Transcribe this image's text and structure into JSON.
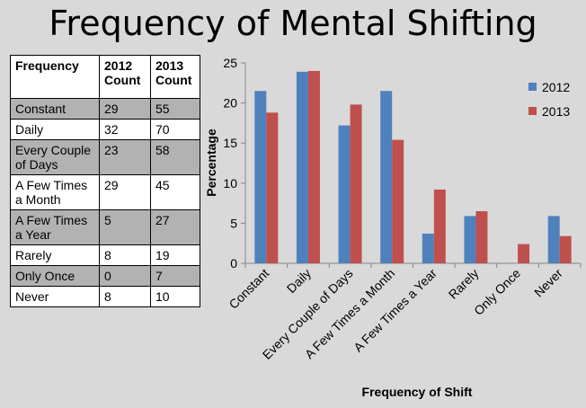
{
  "title": "Frequency of Mental Shifting",
  "table": {
    "headers": [
      "Frequency",
      "2012 Count",
      "2013 Count"
    ],
    "rows": [
      [
        "Constant",
        "29",
        "55"
      ],
      [
        "Daily",
        "32",
        "70"
      ],
      [
        "Every Couple of Days",
        "23",
        "58"
      ],
      [
        "A Few Times a Month",
        "29",
        "45"
      ],
      [
        "A Few Times a Year",
        "5",
        "27"
      ],
      [
        "Rarely",
        "8",
        "19"
      ],
      [
        "Only Once",
        "0",
        "7"
      ],
      [
        "Never",
        "8",
        "10"
      ]
    ]
  },
  "chart_data": {
    "type": "bar",
    "categories": [
      "Constant",
      "Daily",
      "Every Couple of Days",
      "A Few Times a Month",
      "A Few Times a Year",
      "Rarely",
      "Only Once",
      "Never"
    ],
    "series": [
      {
        "name": "2012",
        "color": "#4f81bd",
        "values": [
          21.5,
          23.9,
          17.2,
          21.5,
          3.7,
          5.9,
          0,
          5.9
        ]
      },
      {
        "name": "2013",
        "color": "#c0504d",
        "values": [
          18.8,
          24.0,
          19.8,
          15.4,
          9.2,
          6.5,
          2.4,
          3.4
        ]
      }
    ],
    "xlabel": "Frequency of Shift",
    "ylabel": "Percentage",
    "ylim": [
      0,
      25
    ],
    "yticks": [
      0,
      5,
      10,
      15,
      20,
      25
    ],
    "grid": false,
    "legend_position": "top-right"
  }
}
